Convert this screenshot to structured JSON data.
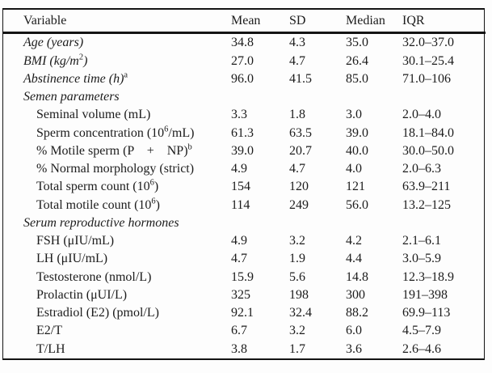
{
  "colors": {
    "background": "#fdfdfd",
    "text": "#1c1c1c",
    "border": "#141414"
  },
  "table": {
    "columns": [
      "Variable",
      "Mean",
      "SD",
      "Median",
      "IQR"
    ],
    "rows": [
      {
        "type": "italic-row",
        "label": "Age (years)",
        "mean": "34.8",
        "sd": "4.3",
        "median": "35.0",
        "iqr": "32.0–37.0"
      },
      {
        "type": "italic-row",
        "label": "BMI (kg/m^{2})",
        "mean": "27.0",
        "sd": "4.7",
        "median": "26.4",
        "iqr": "30.1–25.4"
      },
      {
        "type": "italic-row",
        "label": "Abstinence time (h)^{a}",
        "mean": "96.0",
        "sd": "41.5",
        "median": "85.0",
        "iqr": "71.0–106"
      },
      {
        "type": "section",
        "label": "Semen parameters",
        "mean": "",
        "sd": "",
        "median": "",
        "iqr": ""
      },
      {
        "type": "item",
        "label": "Seminal volume (mL)",
        "mean": "3.3",
        "sd": "1.8",
        "median": "3.0",
        "iqr": "2.0–4.0"
      },
      {
        "type": "item",
        "label": "Sperm concentration (10^{6}/mL)",
        "mean": "61.3",
        "sd": "63.5",
        "median": "39.0",
        "iqr": "18.1–84.0"
      },
      {
        "type": "item",
        "label": "% Motile sperm (P    +    NP)^{b}",
        "mean": "39.0",
        "sd": "20.7",
        "median": "40.0",
        "iqr": "30.0–50.0"
      },
      {
        "type": "item",
        "label": "% Normal morphology (strict)",
        "mean": "4.9",
        "sd": "4.7",
        "median": "4.0",
        "iqr": "2.0–6.3"
      },
      {
        "type": "item",
        "label": "Total sperm count (10^{6})",
        "mean": "154",
        "sd": "120",
        "median": "121",
        "iqr": "63.9–211"
      },
      {
        "type": "item",
        "label": "Total motile count (10^{6})",
        "mean": "114",
        "sd": "249",
        "median": "56.0",
        "iqr": "13.2–125"
      },
      {
        "type": "section",
        "label": "Serum reproductive hormones",
        "mean": "",
        "sd": "",
        "median": "",
        "iqr": ""
      },
      {
        "type": "item",
        "label": "FSH (μIU/mL)",
        "mean": "4.9",
        "sd": "3.2",
        "median": "4.2",
        "iqr": "2.1–6.1"
      },
      {
        "type": "item",
        "label": "LH (μIU/mL)",
        "mean": "4.7",
        "sd": "1.9",
        "median": "4.4",
        "iqr": "3.0–5.9"
      },
      {
        "type": "item",
        "label": "Testosterone (nmol/L)",
        "mean": "15.9",
        "sd": "5.6",
        "median": "14.8",
        "iqr": "12.3–18.9"
      },
      {
        "type": "item",
        "label": "Prolactin (μUI/L)",
        "mean": "325",
        "sd": "198",
        "median": "300",
        "iqr": "191–398"
      },
      {
        "type": "item",
        "label": "Estradiol (E2) (pmol/L)",
        "mean": "92.1",
        "sd": "32.4",
        "median": "88.2",
        "iqr": "69.9–113"
      },
      {
        "type": "item",
        "label": "E2/T",
        "mean": "6.7",
        "sd": "3.2",
        "median": "6.0",
        "iqr": "4.5–7.9"
      },
      {
        "type": "item",
        "label": "T/LH",
        "mean": "3.8",
        "sd": "1.7",
        "median": "3.6",
        "iqr": "2.6–4.6"
      }
    ]
  }
}
